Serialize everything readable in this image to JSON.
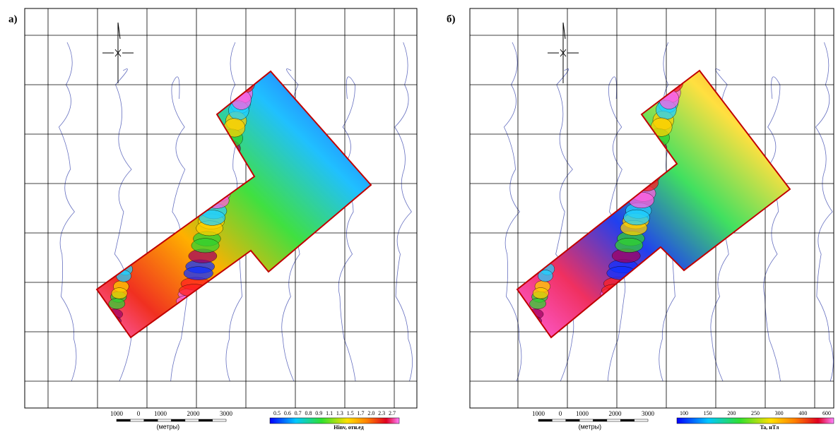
{
  "panels": [
    {
      "label": "а)",
      "scale_bar": {
        "ticks": [
          "1000",
          "0",
          "1000",
          "2000",
          "3000"
        ],
        "unit": "(метры)"
      },
      "colorbar": {
        "ticks": [
          "0.5",
          "0.6",
          "0.7",
          "0.8",
          "0.9",
          "1.1",
          "1.3",
          "1.5",
          "1.7",
          "2.0",
          "2.3",
          "2.7"
        ],
        "title": "Hinv, отн.ед"
      }
    },
    {
      "label": "б)",
      "scale_bar": {
        "ticks": [
          "1000",
          "0",
          "1000",
          "2000",
          "3000"
        ],
        "unit": "(метры)"
      },
      "colorbar": {
        "ticks": [
          "100",
          "150",
          "200",
          "250",
          "300",
          "400",
          "600"
        ],
        "title": "Ta, нТл"
      }
    }
  ]
}
